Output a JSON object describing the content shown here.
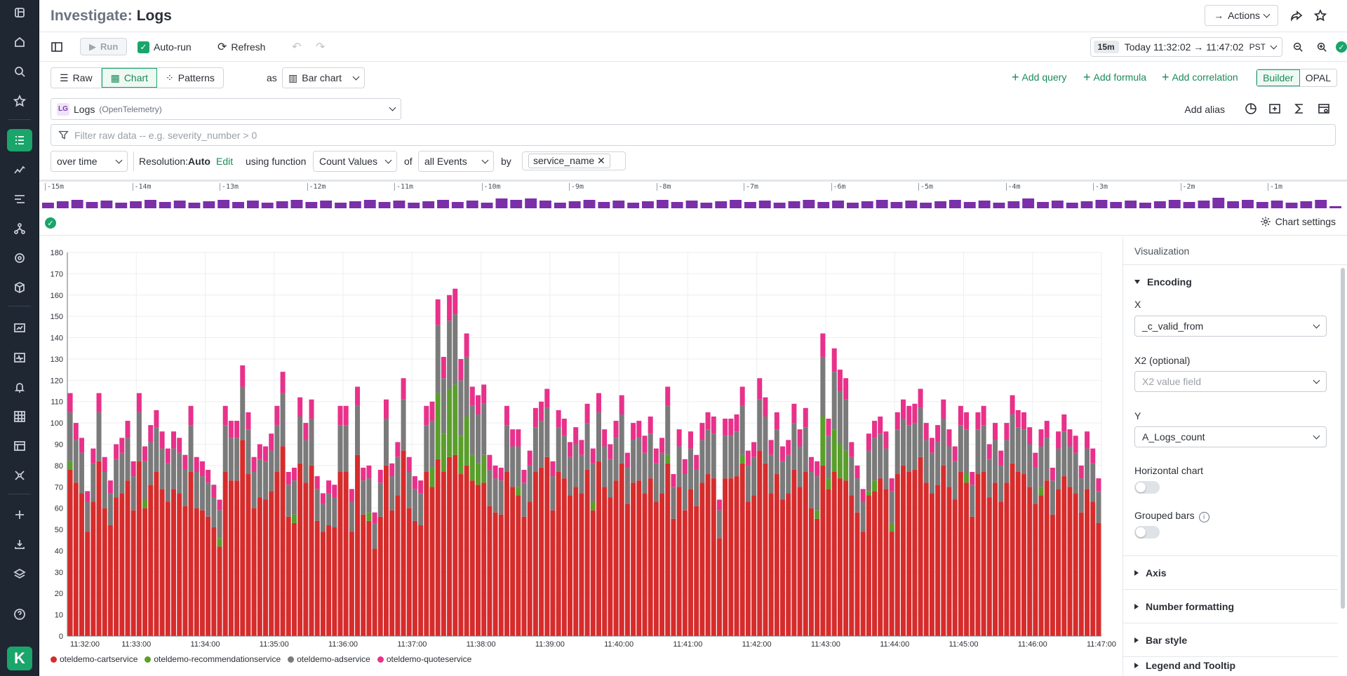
{
  "header": {
    "title_prefix": "Investigate:",
    "title": "Logs",
    "actions_label": "Actions"
  },
  "toolbar": {
    "run_label": "Run",
    "autorun_label": "Auto-run",
    "refresh_label": "Refresh",
    "time_badge": "15m",
    "time_range": "Today 11:32:02 → 11:47:02",
    "timezone": "PST"
  },
  "modes": {
    "raw": "Raw",
    "chart": "Chart",
    "patterns": "Patterns",
    "as_label": "as",
    "viz_type": "Bar chart"
  },
  "query_links": {
    "add_query": "Add query",
    "add_formula": "Add formula",
    "add_correlation": "Add correlation",
    "builder": "Builder",
    "opal": "OPAL"
  },
  "datasource": {
    "icon": "LG",
    "name": "Logs",
    "sub": "(OpenTelemetry)",
    "add_alias": "Add alias"
  },
  "filter": {
    "placeholder": "Filter raw data -- e.g. severity_number > 0"
  },
  "aggregation": {
    "over_time": "over time",
    "resolution_label": "Resolution:",
    "resolution_value": "Auto",
    "edit": "Edit",
    "using_function": "using function",
    "function": "Count Values",
    "of_label": "of",
    "of_value": "all Events",
    "by_label": "by",
    "group_by": "service_name"
  },
  "histogram": {
    "ticks": [
      "-15m",
      "-14m",
      "-13m",
      "-12m",
      "-11m",
      "-10m",
      "-9m",
      "-8m",
      "-7m",
      "-6m",
      "-5m",
      "-4m",
      "-3m",
      "-2m",
      "-1m"
    ],
    "color": "#7b2fa8"
  },
  "chart_settings_label": "Chart settings",
  "chart_data": {
    "type": "bar",
    "stacked": true,
    "ylim": [
      0,
      180
    ],
    "yticks": [
      0,
      10,
      20,
      30,
      40,
      50,
      60,
      70,
      80,
      90,
      100,
      110,
      120,
      130,
      140,
      150,
      160,
      170,
      180
    ],
    "x_tick_labels": [
      "11:32:00",
      "11:33:00",
      "11:34:00",
      "11:35:00",
      "11:36:00",
      "11:37:00",
      "11:38:00",
      "11:39:00",
      "11:40:00",
      "11:41:00",
      "11:42:00",
      "11:43:00",
      "11:44:00",
      "11:45:00",
      "11:46:00",
      "11:47:00"
    ],
    "grid": true,
    "legend_position": "bottom-left",
    "series": [
      {
        "name": "oteldemo-cartservice",
        "color": "#d62c2c"
      },
      {
        "name": "oteldemo-recommendationservice",
        "color": "#5a9e2b"
      },
      {
        "name": "oteldemo-adservice",
        "color": "#7a7a7a"
      },
      {
        "name": "oteldemo-quoteservice",
        "color": "#e8318a"
      }
    ],
    "bars_note": "180 stacked bars (5s buckets); values per bar listed in totals",
    "totals": [
      114,
      100,
      93,
      68,
      88,
      114,
      84,
      73,
      90,
      93,
      101,
      82,
      114,
      89,
      99,
      106,
      96,
      88,
      96,
      93,
      85,
      108,
      84,
      82,
      78,
      71,
      64,
      108,
      101,
      101,
      127,
      105,
      84,
      90,
      89,
      95,
      108,
      124,
      77,
      79,
      112,
      100,
      111,
      75,
      67,
      73,
      71,
      108,
      108,
      69,
      117,
      79,
      80,
      58,
      78,
      111,
      81,
      91,
      121,
      84,
      75,
      73,
      108,
      110,
      158,
      131,
      160,
      163,
      130,
      142,
      117,
      113,
      118,
      85,
      80,
      79,
      108,
      97,
      97,
      78,
      87,
      107,
      110,
      116,
      82,
      106,
      102,
      91,
      98,
      92,
      109,
      88,
      114,
      97,
      90,
      101,
      113,
      86,
      100,
      101,
      94,
      103,
      88,
      93,
      117,
      76,
      97,
      83,
      96,
      85,
      100,
      105,
      103,
      64,
      102,
      102,
      104,
      117,
      87,
      91,
      121,
      112,
      92,
      105,
      89,
      92,
      109,
      97,
      107,
      84,
      82,
      142,
      102,
      135,
      125,
      121,
      91,
      80,
      69,
      95,
      101,
      103,
      96,
      74,
      105,
      111,
      108,
      109,
      116,
      100,
      93,
      99,
      111,
      97,
      89,
      108,
      105,
      77,
      105,
      108,
      90,
      100,
      87,
      100,
      113,
      106,
      105,
      98,
      86,
      97,
      101,
      79,
      96,
      104,
      97,
      94,
      80,
      96,
      88,
      74
    ]
  },
  "panel": {
    "title": "Visualization",
    "encoding": "Encoding",
    "x_label": "X",
    "x_value": "_c_valid_from",
    "x2_label": "X2 (optional)",
    "x2_placeholder": "X2 value field",
    "y_label": "Y",
    "y_value": "A_Logs_count",
    "horizontal": "Horizontal chart",
    "grouped": "Grouped bars",
    "axis": "Axis",
    "number_formatting": "Number formatting",
    "bar_style": "Bar style",
    "legend_tooltip": "Legend and Tooltip"
  }
}
